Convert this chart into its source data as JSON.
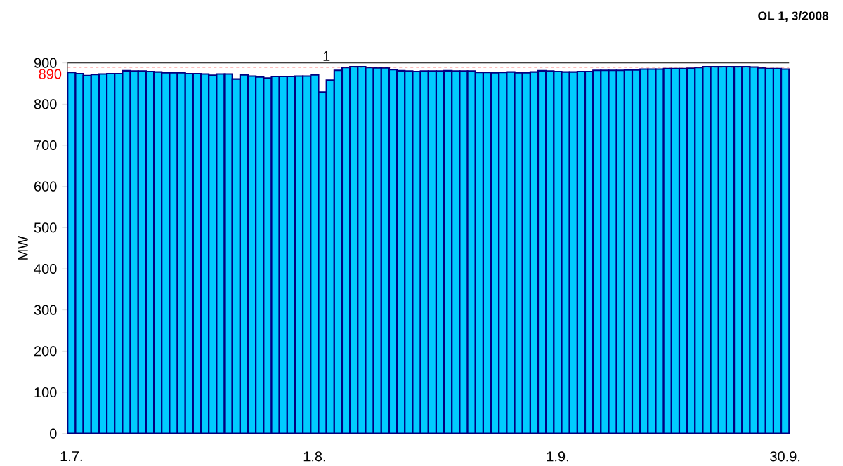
{
  "chart_data": {
    "type": "bar",
    "title": "OL 1, 3/2008",
    "ylabel": "MW",
    "categories": [
      "1.7.",
      null,
      null,
      null,
      null,
      null,
      null,
      null,
      null,
      null,
      null,
      null,
      null,
      null,
      null,
      null,
      null,
      null,
      null,
      null,
      null,
      null,
      null,
      null,
      null,
      null,
      null,
      null,
      null,
      null,
      null,
      "1.8.",
      null,
      null,
      null,
      null,
      null,
      null,
      null,
      null,
      null,
      null,
      null,
      null,
      null,
      null,
      null,
      null,
      null,
      null,
      null,
      null,
      null,
      null,
      null,
      null,
      null,
      null,
      null,
      null,
      null,
      null,
      "1.9.",
      null,
      null,
      null,
      null,
      null,
      null,
      null,
      null,
      null,
      null,
      null,
      null,
      null,
      null,
      null,
      null,
      null,
      null,
      null,
      null,
      null,
      null,
      null,
      null,
      null,
      null,
      null,
      null,
      "30.9."
    ],
    "values": [
      877,
      874,
      869,
      872,
      873,
      874,
      874,
      881,
      880,
      880,
      879,
      878,
      876,
      876,
      876,
      874,
      874,
      873,
      870,
      873,
      873,
      861,
      871,
      868,
      866,
      863,
      867,
      867,
      867,
      868,
      868,
      871,
      829,
      858,
      882,
      889,
      891,
      891,
      889,
      888,
      888,
      884,
      881,
      880,
      879,
      880,
      880,
      880,
      881,
      880,
      880,
      880,
      877,
      877,
      876,
      877,
      878,
      876,
      876,
      878,
      881,
      880,
      879,
      878,
      878,
      879,
      879,
      882,
      882,
      882,
      882,
      883,
      883,
      885,
      885,
      885,
      886,
      886,
      886,
      887,
      889,
      891,
      891,
      891,
      891,
      891,
      891,
      890,
      888,
      886,
      886,
      885
    ],
    "color": "#00ccff",
    "ylim": [
      0,
      900
    ],
    "yticks": [
      0,
      100,
      200,
      300,
      400,
      500,
      600,
      700,
      800,
      900
    ],
    "ref_lines": [
      {
        "axis": "y",
        "value": 890,
        "label": "890",
        "color": "#ff0000",
        "line_style": "dashed"
      }
    ],
    "annotations": [
      "1"
    ]
  }
}
